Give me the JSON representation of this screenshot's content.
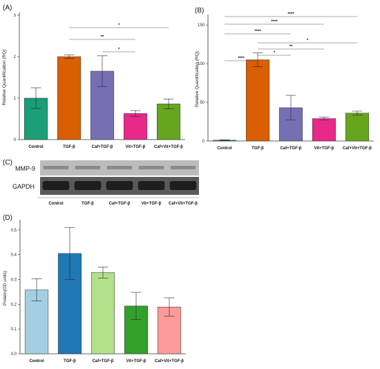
{
  "categories": [
    "Control",
    "TGF-β",
    "Caf+TGF-β",
    "Vit+TGF-β",
    "Caf+Vit+TGF-β"
  ],
  "colors": {
    "A": [
      "#1a9e77",
      "#d95f02",
      "#7570b3",
      "#e7298a",
      "#66a61e"
    ],
    "B": [
      "#1a9e77",
      "#d95f02",
      "#7570b3",
      "#e7298a",
      "#66a61e"
    ],
    "D": [
      "#a6cee3",
      "#1f78b4",
      "#b2df8a",
      "#33a02c",
      "#fb9a99"
    ]
  },
  "blot": {
    "label": "(C)",
    "rows": [
      "MMP-9",
      "GAPDH"
    ]
  },
  "chart_data": [
    {
      "type": "bar",
      "label": "(A)",
      "ylabel": "Relative Quantification (RQ)",
      "categories": [
        "Control",
        "TGF-β",
        "Caf+TGF-β",
        "Vit+TGF-β",
        "Caf+Vit+TGF-β"
      ],
      "values": [
        1.0,
        2.0,
        1.65,
        0.63,
        0.86
      ],
      "errors": [
        0.25,
        0.04,
        0.37,
        0.07,
        0.12
      ],
      "ylim": [
        0,
        3
      ],
      "yticks": [
        0,
        1,
        2,
        3
      ],
      "significance": [
        {
          "from": 1,
          "to": 4,
          "label": "*"
        },
        {
          "from": 1,
          "to": 3,
          "label": "**"
        },
        {
          "from": 2,
          "to": 3,
          "label": "*"
        }
      ]
    },
    {
      "type": "bar",
      "label": "(B)",
      "ylabel": "Relative Quantification (RQ)",
      "categories": [
        "Control",
        "TGF-β",
        "Caf+TGF-β",
        "Vit+TGF-β",
        "Caf+Vit+TGF-β"
      ],
      "values": [
        1,
        105,
        43,
        29,
        36
      ],
      "errors": [
        0.5,
        9,
        16,
        2,
        2.5
      ],
      "ylim": [
        0,
        160
      ],
      "yticks": [
        0,
        50,
        100,
        150
      ],
      "significance": [
        {
          "from": 0,
          "to": 4,
          "label": "****"
        },
        {
          "from": 0,
          "to": 3,
          "label": "****"
        },
        {
          "from": 0,
          "to": 2,
          "label": "****"
        },
        {
          "from": 1,
          "to": 4,
          "label": "*"
        },
        {
          "from": 1,
          "to": 3,
          "label": "**"
        },
        {
          "from": 1,
          "to": 2,
          "label": "*"
        },
        {
          "from": 0,
          "to": 1,
          "label": "****"
        }
      ]
    },
    {
      "type": "bar",
      "label": "(D)",
      "ylabel": "Protein(OD units)",
      "categories": [
        "Control",
        "TGF-β",
        "Caf+TGF-β",
        "Vit+TGF-β",
        "Caf+Vit+TGF-β"
      ],
      "values": [
        0.258,
        0.405,
        0.328,
        0.193,
        0.189
      ],
      "errors": [
        0.045,
        0.105,
        0.022,
        0.055,
        0.037
      ],
      "ylim": [
        0,
        0.53
      ],
      "yticks": [
        0.0,
        0.1,
        0.2,
        0.3,
        0.4,
        0.5
      ],
      "yticklabels": [
        "0.0",
        "0.1",
        "0.2",
        "0.3",
        "0.4",
        "0.5"
      ]
    }
  ]
}
